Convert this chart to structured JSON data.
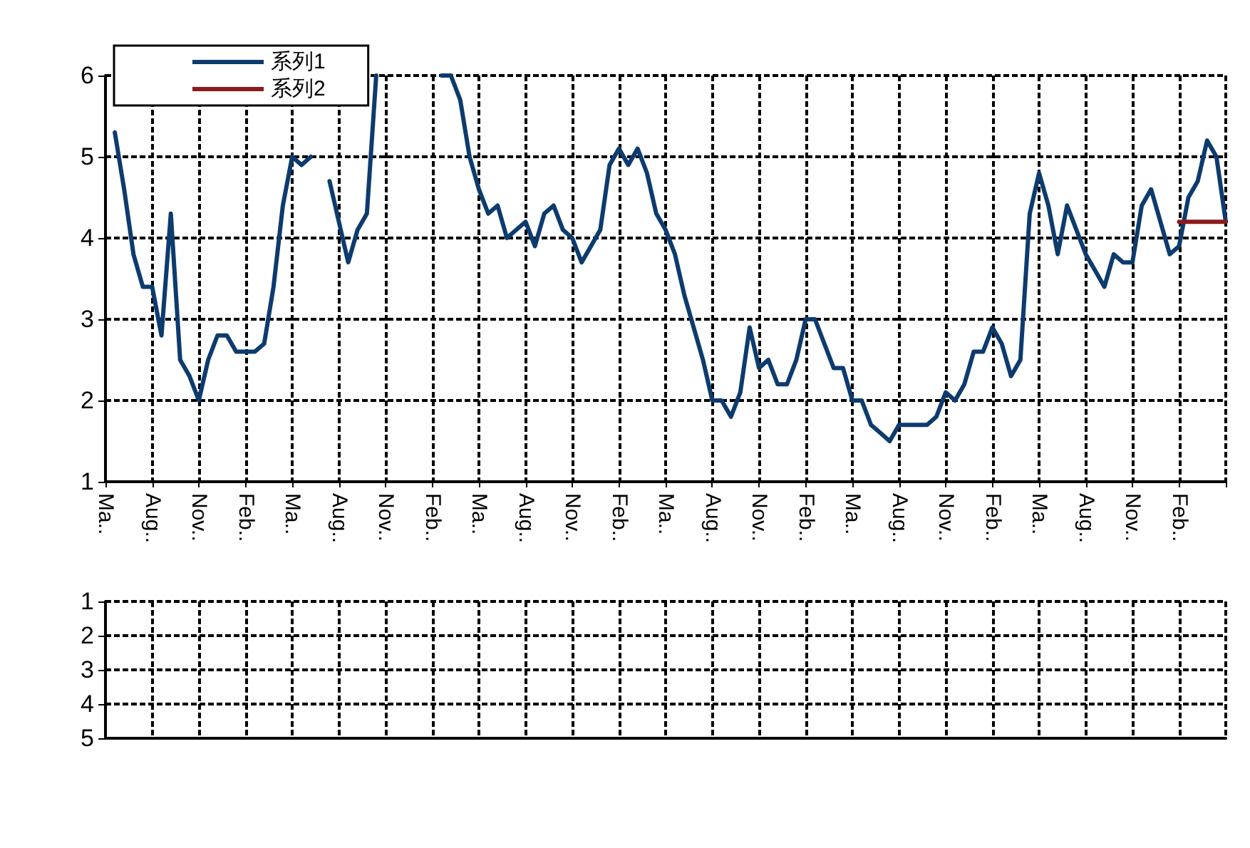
{
  "chart_data": [
    {
      "type": "line",
      "legend": "top left",
      "grid": true,
      "marker": "none",
      "line_style": "solid",
      "ylim": [
        1,
        6
      ],
      "yticks": [
        1,
        2,
        3,
        4,
        5,
        6
      ],
      "categories": [
        "Ma..",
        null,
        null,
        null,
        null,
        "Aug..",
        null,
        null,
        null,
        null,
        "Nov..",
        null,
        null,
        null,
        null,
        "Feb..",
        null,
        null,
        null,
        null,
        "Ma..",
        null,
        null,
        null,
        null,
        "Aug..",
        null,
        null,
        null,
        null,
        "Nov..",
        null,
        null,
        null,
        null,
        "Feb..",
        null,
        null,
        null,
        null,
        "Ma..",
        null,
        null,
        null,
        null,
        "Aug..",
        null,
        null,
        null,
        null,
        "Nov..",
        null,
        null,
        null,
        null,
        "Feb..",
        null,
        null,
        null,
        null,
        "Ma..",
        null,
        null,
        null,
        null,
        "Aug..",
        null,
        null,
        null,
        null,
        "Nov..",
        null,
        null,
        null,
        null,
        "Feb..",
        null,
        null,
        null,
        null,
        "Ma..",
        null,
        null,
        null,
        null,
        "Aug..",
        null,
        null,
        null,
        null,
        "Nov..",
        null,
        null,
        null,
        null,
        "Feb..",
        null,
        null,
        null,
        null,
        "Ma..",
        null,
        null,
        null,
        null,
        "Aug..",
        null,
        null,
        null,
        null,
        "Nov..",
        null,
        null,
        null,
        null,
        "Feb..",
        null,
        null,
        null,
        null,
        null
      ],
      "series": [
        {
          "name": "系列1",
          "color": "#0d3b6e",
          "values": [
            null,
            5.3,
            4.6,
            3.8,
            3.4,
            3.4,
            2.8,
            4.3,
            2.5,
            2.3,
            2.0,
            2.5,
            2.8,
            2.8,
            2.6,
            2.6,
            2.6,
            2.7,
            3.4,
            4.4,
            5.0,
            4.9,
            5.0,
            null,
            4.7,
            4.2,
            3.7,
            4.1,
            4.3,
            6.0,
            null,
            null,
            null,
            null,
            null,
            null,
            6.0,
            6.0,
            5.7,
            5.0,
            4.6,
            4.3,
            4.4,
            4.0,
            4.1,
            4.2,
            3.9,
            4.3,
            4.4,
            4.1,
            4.0,
            3.7,
            3.9,
            4.1,
            4.9,
            5.1,
            4.9,
            5.1,
            4.8,
            4.3,
            4.1,
            3.8,
            3.3,
            2.9,
            2.5,
            2.0,
            2.0,
            1.8,
            2.1,
            2.9,
            2.4,
            2.5,
            2.2,
            2.2,
            2.5,
            3.0,
            3.0,
            2.7,
            2.4,
            2.4,
            2.0,
            2.0,
            1.7,
            1.6,
            1.5,
            1.7,
            1.7,
            1.7,
            1.7,
            1.8,
            2.1,
            2.0,
            2.2,
            2.6,
            2.6,
            2.9,
            2.7,
            2.3,
            2.5,
            4.3,
            4.8,
            4.4,
            3.8,
            4.4,
            4.1,
            3.8,
            3.6,
            3.4,
            3.8,
            3.7,
            3.7,
            4.4,
            4.6,
            4.2,
            3.8,
            3.9,
            4.5,
            4.7,
            5.2,
            5.0,
            4.2
          ]
        },
        {
          "name": "系列2",
          "color": "#8b1a1a",
          "values": [
            null,
            null,
            null,
            null,
            null,
            null,
            null,
            null,
            null,
            null,
            null,
            null,
            null,
            null,
            null,
            null,
            null,
            null,
            null,
            null,
            null,
            null,
            null,
            null,
            null,
            null,
            null,
            null,
            null,
            null,
            null,
            null,
            null,
            null,
            null,
            null,
            null,
            null,
            null,
            null,
            null,
            null,
            null,
            null,
            null,
            null,
            null,
            null,
            null,
            null,
            null,
            null,
            null,
            null,
            null,
            null,
            null,
            null,
            null,
            null,
            null,
            null,
            null,
            null,
            null,
            null,
            null,
            null,
            null,
            null,
            null,
            null,
            null,
            null,
            null,
            null,
            null,
            null,
            null,
            null,
            null,
            null,
            null,
            null,
            null,
            null,
            null,
            null,
            null,
            null,
            null,
            null,
            null,
            null,
            null,
            null,
            null,
            null,
            null,
            null,
            null,
            null,
            null,
            null,
            null,
            null,
            null,
            null,
            null,
            null,
            null,
            null,
            null,
            null,
            null,
            4.2,
            4.2,
            4.2,
            4.2,
            4.2,
            4.2
          ]
        }
      ]
    },
    {
      "type": "line",
      "grid": true,
      "tick_labels": "y",
      "ylim": [
        5,
        1
      ],
      "yticks": [
        1,
        2,
        3,
        4,
        5
      ],
      "categories": [
        null,
        null,
        null,
        null,
        null,
        null,
        null,
        null,
        null,
        null,
        null,
        null,
        null,
        null,
        null,
        null,
        null,
        null,
        null,
        null,
        null,
        null,
        null,
        null,
        null
      ],
      "series": [
        {
          "color": "#0d3b6e",
          "values": [
            null,
            null,
            null,
            null,
            null,
            null,
            null,
            null,
            null,
            null,
            null,
            null,
            null,
            null,
            null,
            null,
            null,
            null,
            null,
            null,
            null,
            null,
            null,
            null,
            null
          ]
        }
      ]
    }
  ]
}
